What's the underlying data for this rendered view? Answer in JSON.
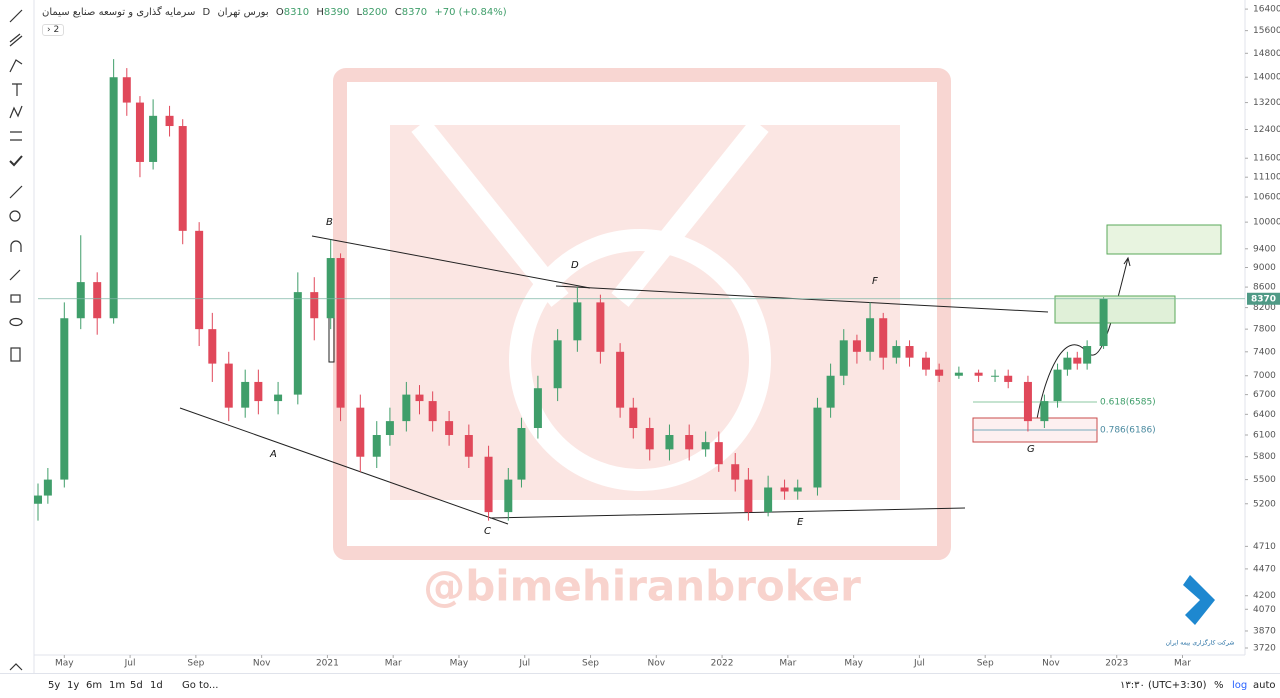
{
  "header": {
    "title": "سرمایه گذاری و توسعه صنایع سیمان",
    "interval": "D",
    "exchange": "بورس تهران",
    "open_label": "O",
    "open": "8310",
    "high_label": "H",
    "high": "8390",
    "low_label": "L",
    "low": "8200",
    "close_label": "C",
    "close": "8370",
    "change": "+70 (+0.84%)",
    "indicators": "2"
  },
  "chart_data": {
    "type": "candlestick",
    "yscale": "log",
    "grid": false,
    "x": [
      -0.8,
      -0.5,
      0,
      0.5,
      1,
      1.5,
      1.9,
      2.3,
      2.7,
      3.2,
      3.6,
      4.1,
      4.5,
      5,
      5.5,
      5.9,
      6.5,
      7.1,
      7.6,
      8.1,
      8.4,
      9,
      9.5,
      9.9,
      10.4,
      10.8,
      11.2,
      11.7,
      12.3,
      12.9,
      13.5,
      13.9,
      14.4,
      15,
      15.6,
      16.3,
      16.9,
      17.3,
      17.8,
      18.4,
      19,
      19.5,
      19.9,
      20.4,
      20.8,
      21.4,
      21.9,
      22.3,
      22.9,
      23.3,
      23.7,
      24.1,
      24.5,
      24.9,
      25.3,
      25.7,
      26.2,
      26.6,
      27.2,
      27.8,
      28.3,
      28.7,
      29.3,
      29.8,
      30.2,
      30.5,
      30.8,
      31.1,
      31.6
    ],
    "open": [
      5200,
      5300,
      5500,
      8000,
      8700,
      8000,
      14000,
      13200,
      11500,
      12800,
      12500,
      9800,
      7800,
      7200,
      6500,
      6900,
      6600,
      6700,
      8500,
      8000,
      9200,
      6500,
      5800,
      6100,
      6300,
      6700,
      6600,
      6300,
      6100,
      5800,
      5100,
      5500,
      6200,
      6800,
      7600,
      8300,
      7400,
      6500,
      6200,
      5900,
      6100,
      5900,
      6000,
      5700,
      5500,
      5100,
      5400,
      5350,
      5400,
      6500,
      7000,
      7600,
      7400,
      8000,
      7300,
      7500,
      7300,
      7100,
      7000,
      7050,
      7000,
      7000,
      6900,
      6300,
      6600,
      7100,
      7300,
      7200,
      7500
    ],
    "high": [
      5450,
      5650,
      8300,
      9700,
      8900,
      14600,
      14300,
      13400,
      13300,
      13100,
      12700,
      10000,
      8100,
      7400,
      7100,
      7100,
      6900,
      8900,
      8800,
      9600,
      9300,
      6700,
      6300,
      6500,
      6900,
      6850,
      6750,
      6450,
      6250,
      5950,
      5650,
      6350,
      7000,
      7800,
      8600,
      8450,
      7550,
      6650,
      6350,
      6250,
      6250,
      6150,
      6150,
      5850,
      5650,
      5550,
      5500,
      5500,
      6650,
      7200,
      7800,
      7700,
      8300,
      8100,
      7600,
      7600,
      7400,
      7200,
      7150,
      7100,
      7100,
      7100,
      7000,
      6700,
      7200,
      7400,
      7400,
      7600,
      8400
    ],
    "low": [
      5000,
      5200,
      5400,
      7800,
      7700,
      7900,
      12800,
      11100,
      11300,
      12200,
      9500,
      7500,
      6900,
      6300,
      6350,
      6400,
      6400,
      6550,
      7600,
      7800,
      6300,
      5600,
      5650,
      5950,
      6150,
      6400,
      6150,
      5950,
      5650,
      5000,
      5000,
      5400,
      6050,
      6600,
      7400,
      7200,
      6350,
      6050,
      5750,
      5750,
      5750,
      5800,
      5600,
      5350,
      5000,
      5050,
      5250,
      5250,
      5300,
      6350,
      6850,
      7200,
      7250,
      7100,
      7200,
      7150,
      7000,
      6900,
      6950,
      6900,
      6900,
      6800,
      6150,
      6200,
      6500,
      7000,
      7100,
      7100,
      7450
    ],
    "close": [
      5300,
      5500,
      8000,
      8700,
      8000,
      14000,
      13200,
      11500,
      12800,
      12500,
      9800,
      7800,
      7200,
      6500,
      6900,
      6600,
      6700,
      8500,
      8000,
      9200,
      6500,
      5800,
      6100,
      6300,
      6700,
      6600,
      6300,
      6100,
      5800,
      5100,
      5500,
      6200,
      6800,
      7600,
      8300,
      7400,
      6500,
      6200,
      5900,
      6100,
      5900,
      6000,
      5700,
      5500,
      5100,
      5400,
      5350,
      5400,
      6500,
      7000,
      7600,
      7400,
      8000,
      7300,
      7500,
      7300,
      7100,
      7000,
      7050,
      7000,
      7000,
      6900,
      6300,
      6600,
      7100,
      7300,
      7200,
      7500,
      8370
    ],
    "up_color": "#3f9e6a",
    "down_color": "#e0485a",
    "last_price": 8370,
    "xlim": [
      -0.8,
      35.9
    ],
    "xticks": [
      {
        "value": 0,
        "label": "May"
      },
      {
        "value": 2,
        "label": "Jul"
      },
      {
        "value": 4,
        "label": "Sep"
      },
      {
        "value": 6,
        "label": "Nov"
      },
      {
        "value": 8,
        "label": "2021"
      },
      {
        "value": 10,
        "label": "Mar"
      },
      {
        "value": 12,
        "label": "May"
      },
      {
        "value": 14,
        "label": "Jul"
      },
      {
        "value": 16,
        "label": "Sep"
      },
      {
        "value": 18,
        "label": "Nov"
      },
      {
        "value": 20,
        "label": "2022"
      },
      {
        "value": 22,
        "label": "Mar"
      },
      {
        "value": 24,
        "label": "May"
      },
      {
        "value": 26,
        "label": "Jul"
      },
      {
        "value": 28,
        "label": "Sep"
      },
      {
        "value": 30,
        "label": "Nov"
      },
      {
        "value": 32,
        "label": "2023"
      },
      {
        "value": 34,
        "label": "Mar"
      }
    ],
    "ylim": [
      3660,
      16750
    ],
    "yticks": [
      16400,
      15600,
      14800,
      14000,
      13200,
      12400,
      11600,
      11100,
      10600,
      10000,
      9400,
      9000,
      8600,
      8200,
      7800,
      7400,
      7000,
      6700,
      6400,
      6100,
      5800,
      5500,
      5200,
      4710,
      4470,
      4200,
      4070,
      3870,
      3720
    ],
    "annotations": [
      "A",
      "B",
      "C",
      "D",
      "E",
      "F",
      "G"
    ],
    "fib": [
      "0.618(6585)",
      "0.786(6186)"
    ],
    "watermark": "@bimehiranbroker",
    "logo_text": "شرکت کارگزاری بیمه ایران"
  },
  "toolbar": {
    "ranges": [
      "5y",
      "1y",
      "6m",
      "1m",
      "5d",
      "1d"
    ],
    "goto": "Go to...",
    "time": "۱۳:۳۰ (UTC+3:30)",
    "percent": "%",
    "log": "log",
    "auto": "auto"
  }
}
